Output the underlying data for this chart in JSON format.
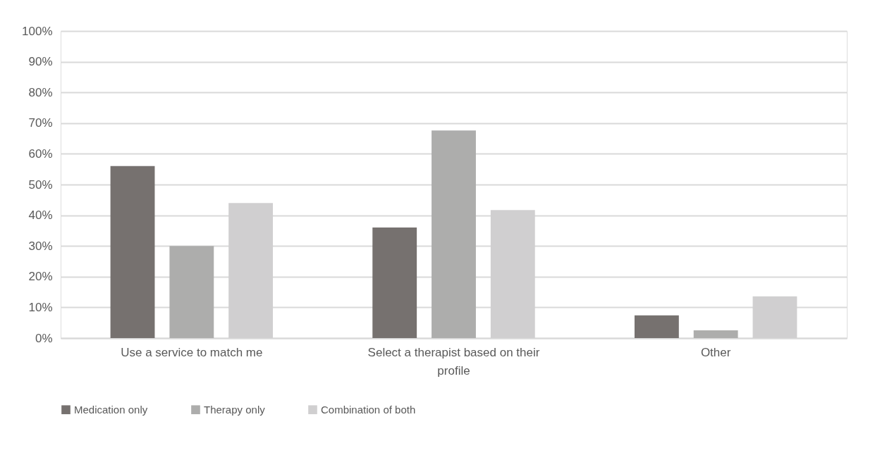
{
  "chart_data": {
    "type": "bar",
    "categories": [
      "Use a service to match me",
      "Select a therapist based on their profile",
      "Other"
    ],
    "series": [
      {
        "name": "Medication only",
        "color": "#76716f",
        "values": [
          56,
          36,
          7.4
        ]
      },
      {
        "name": "Therapy only",
        "color": "#adadac",
        "values": [
          30,
          67.6,
          2.5
        ]
      },
      {
        "name": "Combination of both",
        "color": "#d0cfd0",
        "values": [
          44,
          41.7,
          13.6
        ]
      }
    ],
    "ylim": [
      0,
      100
    ],
    "yticks": [
      {
        "value": 0,
        "label": "0%"
      },
      {
        "value": 10,
        "label": "10%"
      },
      {
        "value": 20,
        "label": "20%"
      },
      {
        "value": 30,
        "label": "30%"
      },
      {
        "value": 40,
        "label": "40%"
      },
      {
        "value": 50,
        "label": "50%"
      },
      {
        "value": 60,
        "label": "60%"
      },
      {
        "value": 70,
        "label": "70%"
      },
      {
        "value": 80,
        "label": "80%"
      },
      {
        "value": 90,
        "label": "90%"
      },
      {
        "value": 100,
        "label": "100%"
      }
    ],
    "grid": "y",
    "legend": "bottom"
  }
}
